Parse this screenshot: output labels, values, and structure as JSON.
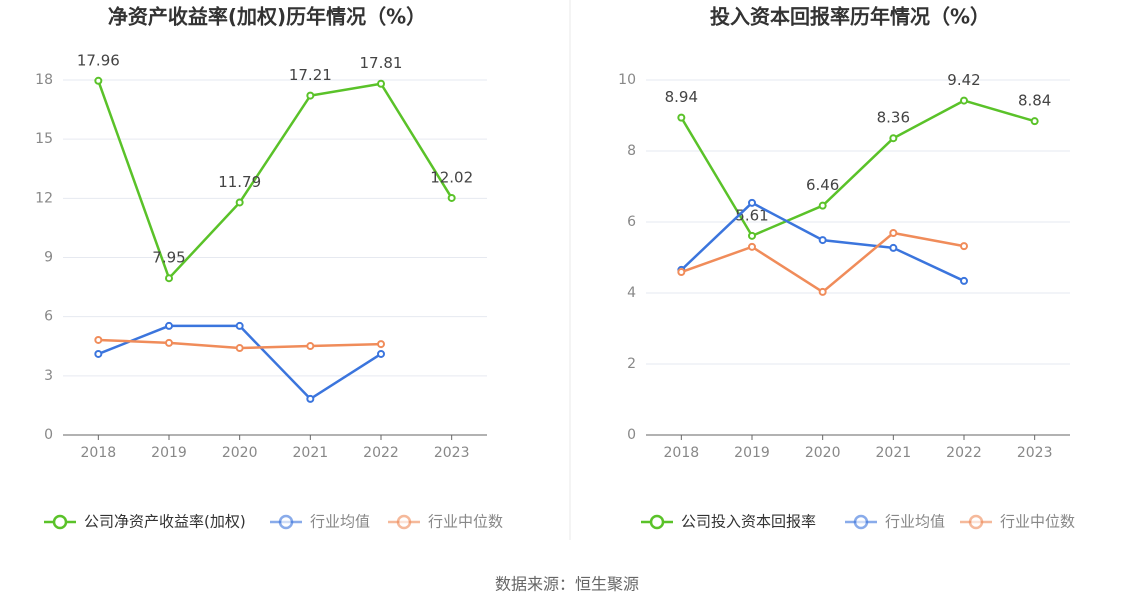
{
  "chart_data": [
    {
      "type": "line",
      "title": "净资产收益率(加权)历年情况（%）",
      "categories": [
        "2018",
        "2019",
        "2020",
        "2021",
        "2022",
        "2023"
      ],
      "ylim": [
        0,
        18
      ],
      "yticks": [
        0,
        3,
        6,
        9,
        12,
        15,
        18
      ],
      "grid": true,
      "series": [
        {
          "name": "公司净资产收益率(加权)",
          "color": "#5ac229",
          "show_labels": true,
          "values": [
            17.96,
            7.95,
            11.79,
            17.21,
            17.81,
            12.02
          ]
        },
        {
          "name": "行业均值",
          "color": "#3b75dd",
          "show_labels": false,
          "values": [
            4.11,
            5.53,
            5.53,
            1.83,
            4.11,
            null
          ]
        },
        {
          "name": "行业中位数",
          "color": "#f08c5a",
          "show_labels": false,
          "values": [
            4.82,
            4.67,
            4.41,
            4.51,
            4.61,
            null
          ]
        }
      ]
    },
    {
      "type": "line",
      "title": "投入资本回报率历年情况（%）",
      "categories": [
        "2018",
        "2019",
        "2020",
        "2021",
        "2022",
        "2023"
      ],
      "ylim": [
        0,
        10
      ],
      "yticks": [
        0,
        2,
        4,
        6,
        8,
        10
      ],
      "grid": true,
      "series": [
        {
          "name": "公司投入资本回报率",
          "color": "#5ac229",
          "show_labels": true,
          "values": [
            8.94,
            5.61,
            6.46,
            8.36,
            9.42,
            8.84
          ]
        },
        {
          "name": "行业均值",
          "color": "#3b75dd",
          "show_labels": false,
          "values": [
            4.65,
            6.54,
            5.49,
            5.27,
            4.34,
            null
          ]
        },
        {
          "name": "行业中位数",
          "color": "#f08c5a",
          "show_labels": false,
          "values": [
            4.59,
            5.3,
            4.03,
            5.69,
            5.32,
            null
          ]
        }
      ]
    }
  ],
  "source": "数据来源：恒生聚源"
}
